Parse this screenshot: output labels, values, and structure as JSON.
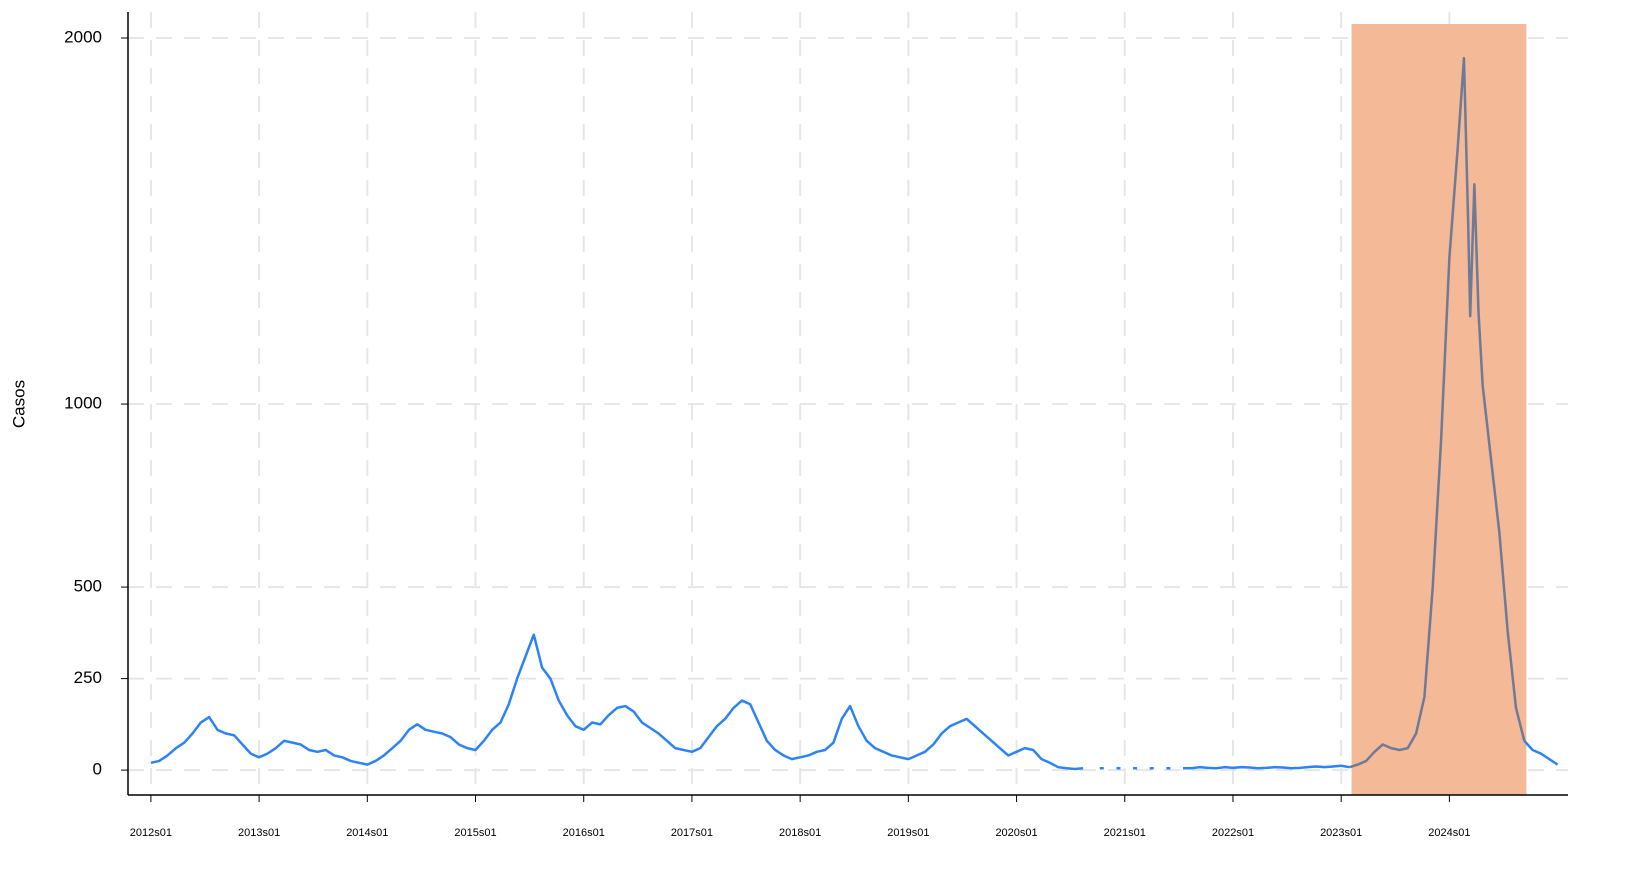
{
  "chart_data": {
    "type": "line",
    "ylabel": "Casos",
    "x": [
      0,
      4,
      8,
      12,
      16,
      20,
      24,
      28,
      32,
      36,
      40,
      44,
      48,
      52,
      56,
      60,
      64,
      68,
      72,
      76,
      80,
      84,
      88,
      92,
      96,
      100,
      104,
      108,
      112,
      116,
      120,
      124,
      128,
      132,
      136,
      140,
      144,
      148,
      152,
      156,
      160,
      164,
      168,
      172,
      176,
      180,
      184,
      188,
      192,
      196,
      200,
      204,
      208,
      212,
      216,
      220,
      224,
      228,
      232,
      236,
      240,
      244,
      248,
      252,
      256,
      260,
      264,
      268,
      272,
      276,
      280,
      284,
      288,
      292,
      296,
      300,
      304,
      308,
      312,
      316,
      320,
      324,
      328,
      332,
      336,
      340,
      344,
      348,
      352,
      356,
      360,
      364,
      368,
      372,
      376,
      380,
      384,
      388,
      392,
      396,
      400,
      404,
      408,
      412,
      416,
      420,
      424,
      428,
      432,
      436,
      440,
      444,
      448,
      452,
      456,
      460,
      464,
      468,
      472,
      476,
      480,
      484,
      488,
      492,
      496,
      500,
      504,
      508,
      512,
      516,
      520,
      524,
      528,
      532,
      536,
      540,
      544,
      548,
      552,
      556,
      560,
      564,
      568,
      572,
      576,
      580,
      584,
      588,
      592,
      596,
      600,
      604,
      608,
      612,
      616,
      620,
      624,
      628,
      631,
      633,
      634,
      636,
      638,
      640,
      644,
      648,
      652,
      656,
      660,
      664,
      668,
      672,
      676
    ],
    "series": [
      {
        "color": "#2b83f6",
        "values": [
          20,
          25,
          40,
          60,
          75,
          100,
          130,
          145,
          110,
          100,
          95,
          70,
          45,
          35,
          45,
          60,
          80,
          75,
          70,
          55,
          50,
          55,
          40,
          35,
          25,
          20,
          15,
          25,
          40,
          60,
          80,
          110,
          125,
          110,
          105,
          100,
          90,
          70,
          60,
          55,
          80,
          110,
          130,
          180,
          250,
          310,
          370,
          280,
          250,
          190,
          150,
          120,
          110,
          130,
          125,
          150,
          170,
          175,
          160,
          130,
          115,
          100,
          80,
          60,
          55,
          50,
          60,
          90,
          120,
          140,
          170,
          190,
          180,
          130,
          80,
          55,
          40,
          30,
          35,
          40,
          50,
          55,
          75,
          140,
          175,
          120,
          80,
          60,
          50,
          40,
          35,
          30,
          40,
          50,
          70,
          100,
          120,
          130,
          140,
          120,
          100,
          80,
          60,
          40,
          50,
          60,
          55,
          30,
          20,
          8,
          5,
          3,
          5,
          null,
          5,
          null,
          5,
          null,
          5,
          null,
          5,
          null,
          5,
          null,
          5,
          5,
          8,
          6,
          5,
          8,
          6,
          8,
          7,
          5,
          6,
          8,
          7,
          5,
          6,
          8,
          10,
          8,
          10,
          12,
          8,
          null,
          null,
          null,
          null,
          null,
          null,
          null,
          null,
          null,
          null,
          null,
          null,
          null,
          null,
          null,
          null,
          null,
          null,
          null,
          null,
          null,
          null,
          null,
          80,
          55,
          45,
          30,
          15
        ]
      },
      {
        "color": "#6f7a96",
        "values": [
          null,
          null,
          null,
          null,
          null,
          null,
          null,
          null,
          null,
          null,
          null,
          null,
          null,
          null,
          null,
          null,
          null,
          null,
          null,
          null,
          null,
          null,
          null,
          null,
          null,
          null,
          null,
          null,
          null,
          null,
          null,
          null,
          null,
          null,
          null,
          null,
          null,
          null,
          null,
          null,
          null,
          null,
          null,
          null,
          null,
          null,
          null,
          null,
          null,
          null,
          null,
          null,
          null,
          null,
          null,
          null,
          null,
          null,
          null,
          null,
          null,
          null,
          null,
          null,
          null,
          null,
          null,
          null,
          null,
          null,
          null,
          null,
          null,
          null,
          null,
          null,
          null,
          null,
          null,
          null,
          null,
          null,
          null,
          null,
          null,
          null,
          null,
          null,
          null,
          null,
          null,
          null,
          null,
          null,
          null,
          null,
          null,
          null,
          null,
          null,
          null,
          null,
          null,
          null,
          null,
          null,
          null,
          null,
          null,
          null,
          null,
          null,
          null,
          null,
          null,
          null,
          null,
          null,
          null,
          null,
          null,
          null,
          null,
          null,
          null,
          null,
          null,
          null,
          null,
          null,
          null,
          null,
          null,
          null,
          null,
          null,
          null,
          null,
          null,
          null,
          null,
          null,
          null,
          null,
          8,
          15,
          25,
          50,
          70,
          60,
          55,
          60,
          100,
          200,
          500,
          900,
          1400,
          1700,
          1945,
          1500,
          1240,
          1600,
          1250,
          1050,
          850,
          650,
          380,
          170,
          80,
          null,
          null,
          null,
          null
        ]
      }
    ],
    "shade": {
      "xlim": [
        577,
        661
      ],
      "color": "#f4b996"
    },
    "xlim": [
      -11,
      681
    ],
    "xticks": [
      {
        "value": 0,
        "label": "2012s01"
      },
      {
        "value": 52,
        "label": "2013s01"
      },
      {
        "value": 104,
        "label": "2014s01"
      },
      {
        "value": 156,
        "label": "2015s01"
      },
      {
        "value": 208,
        "label": "2016s01"
      },
      {
        "value": 260,
        "label": "2017s01"
      },
      {
        "value": 312,
        "label": "2018s01"
      },
      {
        "value": 364,
        "label": "2019s01"
      },
      {
        "value": 416,
        "label": "2020s01"
      },
      {
        "value": 468,
        "label": "2021s01"
      },
      {
        "value": 520,
        "label": "2022s01"
      },
      {
        "value": 572,
        "label": "2023s01"
      },
      {
        "value": 624,
        "label": "2024s01"
      }
    ],
    "ylim": [
      -68,
      2071
    ],
    "yticks": [
      0,
      250,
      500,
      1000,
      2000
    ],
    "grid": true
  }
}
